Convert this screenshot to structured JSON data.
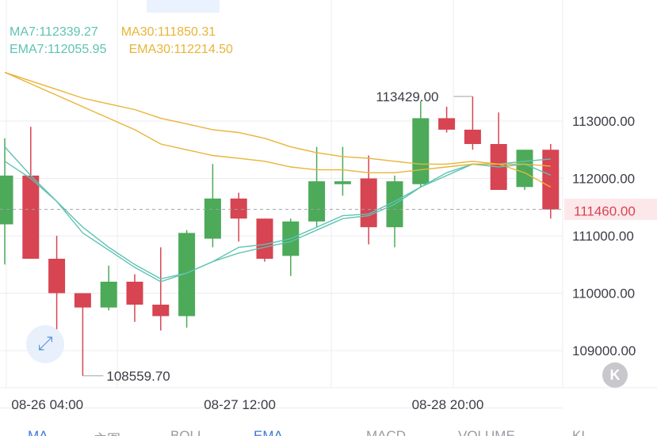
{
  "chart_data": {
    "type": "candlestick",
    "y_ticks": [
      "113000.00",
      "112000.00",
      "111000.00",
      "110000.00",
      "109000.00"
    ],
    "y_tick_values": [
      113000,
      112000,
      111000,
      110000,
      109000
    ],
    "x_ticks": [
      "08-26 04:00",
      "08-27 12:00",
      "08-28 20:00"
    ],
    "x_tick_candle_index": [
      3,
      9,
      17
    ],
    "last_price": 111460,
    "last_price_label": "111460.00",
    "max_label": "113429.00",
    "max_value": 113429,
    "min_label": "108559.70",
    "min_value": 108559.7,
    "grid": true,
    "candles": [
      {
        "open": 111200,
        "high": 112700,
        "low": 110500,
        "close": 112050
      },
      {
        "open": 112050,
        "high": 112900,
        "low": 110600,
        "close": 110600
      },
      {
        "open": 110600,
        "high": 111000,
        "low": 109150,
        "close": 110000
      },
      {
        "open": 110000,
        "high": 110000,
        "low": 108560,
        "close": 109750
      },
      {
        "open": 109750,
        "high": 110480,
        "low": 109700,
        "close": 110200
      },
      {
        "open": 110200,
        "high": 110330,
        "low": 109500,
        "close": 109800
      },
      {
        "open": 109800,
        "high": 110800,
        "low": 109350,
        "close": 109600
      },
      {
        "open": 109600,
        "high": 111100,
        "low": 109400,
        "close": 111050
      },
      {
        "open": 110950,
        "high": 112250,
        "low": 110800,
        "close": 111650
      },
      {
        "open": 111650,
        "high": 111750,
        "low": 110900,
        "close": 111300
      },
      {
        "open": 111300,
        "high": 111300,
        "low": 110550,
        "close": 110600
      },
      {
        "open": 110650,
        "high": 111300,
        "low": 110300,
        "close": 111250
      },
      {
        "open": 111250,
        "high": 112550,
        "low": 111150,
        "close": 111950
      },
      {
        "open": 111900,
        "high": 112550,
        "low": 111700,
        "close": 111950
      },
      {
        "open": 112000,
        "high": 112400,
        "low": 110850,
        "close": 111150
      },
      {
        "open": 111150,
        "high": 112050,
        "low": 110800,
        "close": 111950
      },
      {
        "open": 111900,
        "high": 113350,
        "low": 111850,
        "close": 113050
      },
      {
        "open": 113050,
        "high": 113250,
        "low": 112800,
        "close": 112850
      },
      {
        "open": 112850,
        "high": 113429,
        "low": 112500,
        "close": 112600
      },
      {
        "open": 112600,
        "high": 113150,
        "low": 111800,
        "close": 111800
      },
      {
        "open": 111850,
        "high": 112500,
        "low": 111800,
        "close": 112500
      },
      {
        "open": 112500,
        "high": 112600,
        "low": 111300,
        "close": 111460
      }
    ],
    "series": [
      {
        "name": "MA7",
        "label": "MA7:112339.27",
        "color": "#5fc3b3",
        "values": [
          112550,
          112050,
          111600,
          111050,
          110750,
          110450,
          110200,
          110350,
          110550,
          110800,
          110850,
          110950,
          111150,
          111350,
          111380,
          111600,
          111850,
          112050,
          112250,
          112250,
          112300,
          112339.27
        ]
      },
      {
        "name": "MA30",
        "label": "MA30:111850.31",
        "color": "#e9b437",
        "values": [
          113850,
          113700,
          113550,
          113400,
          113300,
          113200,
          113050,
          112950,
          112850,
          112800,
          112700,
          112550,
          112450,
          112380,
          112350,
          112300,
          112250,
          112250,
          112300,
          112250,
          112100,
          111850.31
        ]
      },
      {
        "name": "EMA7",
        "label": "EMA7:112055.95",
        "color": "#5fc3b3",
        "values": [
          112300,
          112000,
          111600,
          111150,
          110800,
          110500,
          110250,
          110350,
          110550,
          110700,
          110800,
          110900,
          111100,
          111300,
          111350,
          111550,
          111850,
          112100,
          112250,
          112200,
          112250,
          112055.95
        ]
      },
      {
        "name": "EMA30",
        "label": "EMA30:112214.50",
        "color": "#e9b437",
        "values": [
          113850,
          113650,
          113450,
          113250,
          113050,
          112850,
          112600,
          112500,
          112400,
          112350,
          112300,
          112200,
          112150,
          112150,
          112100,
          112100,
          112150,
          112200,
          112250,
          112250,
          112250,
          112214.5
        ]
      }
    ]
  },
  "legend": {
    "row1": [
      {
        "text": "MA7:112339.27",
        "color": "#5fc3b3"
      },
      {
        "text": "MA30:111850.31",
        "color": "#e9b437"
      }
    ],
    "row2": [
      {
        "text": "EMA7:112055.95",
        "color": "#5fc3b3"
      },
      {
        "text": "EMA30:112214.50",
        "color": "#e9b437"
      }
    ]
  },
  "colors": {
    "up": "#4caa59",
    "down": "#d74452",
    "grid": "#ececf0",
    "text": "#3c3c46",
    "dash": "#a0a0a8"
  },
  "icons": {
    "expand": "expand-arrows-icon",
    "collapse": "collapse-left-icon"
  },
  "indicator_tabs": [
    {
      "label": "MA",
      "active": true
    },
    {
      "label": "主图",
      "active": false
    },
    {
      "label": "BOLL",
      "active": false
    },
    {
      "label": "EMA",
      "active": true
    },
    {
      "label": "MACD",
      "active": false
    },
    {
      "label": "VOLUME",
      "active": false
    },
    {
      "label": "KI",
      "active": false
    }
  ]
}
